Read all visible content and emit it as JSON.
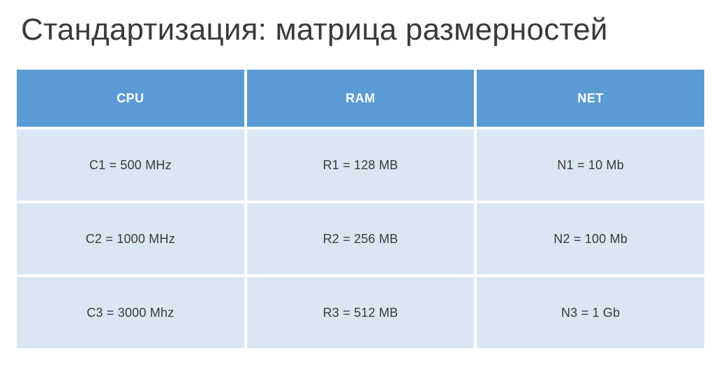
{
  "title": "Стандартизация: матрица размерностей",
  "table": {
    "type": "table",
    "columns": [
      "CPU",
      "RAM",
      "NET"
    ],
    "rows": [
      [
        "C1 = 500 MHz",
        "R1 = 128 MB",
        "N1 = 10 Mb"
      ],
      [
        "C2 = 1000 MHz",
        "R2 = 256 MB",
        "N2 = 100 Mb"
      ],
      [
        "C3 = 3000 Mhz",
        "R3 = 512 MB",
        "N3 = 1 Gb"
      ]
    ],
    "header_bg": "#5a9bd5",
    "header_fg": "#ffffff",
    "header_fontsize": 18,
    "header_fontweight": 600,
    "cell_bg": "#dbe6f3",
    "cell_fg": "#3a3a3a",
    "cell_fontsize": 18,
    "border_spacing": 4,
    "header_row_height": 82,
    "body_row_height": 102,
    "background_color": "#ffffff"
  },
  "title_color": "#3a3a3a",
  "title_fontsize": 44,
  "title_fontweight": 300
}
